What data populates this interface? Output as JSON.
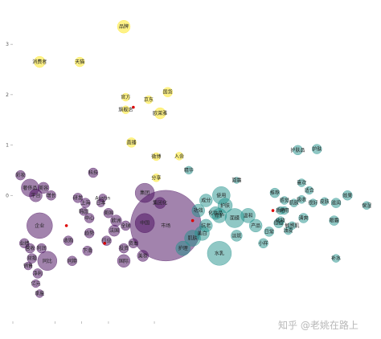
{
  "watermark": "知乎 @老姚在路上",
  "chart_data": {
    "type": "scatter",
    "title": "",
    "xlabel": "",
    "ylabel": "",
    "xlim": [
      -4,
      5.5
    ],
    "ylim": [
      -2.5,
      3.8
    ],
    "y_ticks": [
      3,
      2,
      1,
      0
    ],
    "y_tick_labels": [
      "3",
      "2",
      "1",
      "0"
    ],
    "x_ticks": [
      -4,
      -2.9,
      -2.2,
      -1.5,
      -0.3
    ],
    "x_tick_labels": [
      "",
      "",
      "",
      "",
      ""
    ],
    "grid": false,
    "colors": {
      "yellow": "#fde725",
      "purple": "#46085c",
      "teal": "#21918c",
      "red": "#dd0000"
    },
    "points": [
      {
        "label": "品牌",
        "x": -1.1,
        "y": 3.35,
        "size": 8,
        "color": "yellow"
      },
      {
        "label": "消费者",
        "x": -3.3,
        "y": 2.65,
        "size": 7,
        "color": "yellow"
      },
      {
        "label": "天猫",
        "x": -2.25,
        "y": 2.65,
        "size": 6,
        "color": "yellow"
      },
      {
        "label": "国货",
        "x": 0.05,
        "y": 2.05,
        "size": 6,
        "color": "yellow"
      },
      {
        "label": "官方",
        "x": -1.05,
        "y": 1.95,
        "size": 5,
        "color": "yellow"
      },
      {
        "label": "京东",
        "x": -0.45,
        "y": 1.9,
        "size": 5,
        "color": "yellow"
      },
      {
        "label": "旗舰店",
        "x": -1.05,
        "y": 1.7,
        "size": 5,
        "color": "yellow"
      },
      {
        "label": "欧莱雅",
        "x": -0.15,
        "y": 1.63,
        "size": 7,
        "color": "yellow"
      },
      {
        "label": "直播",
        "x": -0.9,
        "y": 1.05,
        "size": 6,
        "color": "yellow"
      },
      {
        "label": "微博",
        "x": -0.25,
        "y": 0.77,
        "size": 5,
        "color": "yellow"
      },
      {
        "label": "入会",
        "x": 0.35,
        "y": 0.78,
        "size": 5,
        "color": "yellow"
      },
      {
        "label": "分享",
        "x": -0.25,
        "y": 0.35,
        "size": 5,
        "color": "yellow"
      },
      {
        "label": "护肤品",
        "x": 3.45,
        "y": 0.9,
        "size": 6,
        "color": "teal"
      },
      {
        "label": "护肤",
        "x": 3.95,
        "y": 0.92,
        "size": 6,
        "color": "teal"
      },
      {
        "label": "精华",
        "x": 0.6,
        "y": 0.5,
        "size": 5,
        "color": "teal"
      },
      {
        "label": "面霜",
        "x": 1.85,
        "y": 0.3,
        "size": 4,
        "color": "teal"
      },
      {
        "label": "推荐",
        "x": 2.85,
        "y": 0.05,
        "size": 6,
        "color": "teal"
      },
      {
        "label": "喜欢",
        "x": 3.55,
        "y": 0.25,
        "size": 5,
        "color": "teal"
      },
      {
        "label": "适合",
        "x": 3.75,
        "y": 0.1,
        "size": 5,
        "color": "teal"
      },
      {
        "label": "效果",
        "x": 4.75,
        "y": -0.0,
        "size": 6,
        "color": "teal"
      },
      {
        "label": "肌肤",
        "x": 3.35,
        "y": -0.15,
        "size": 5,
        "color": "teal"
      },
      {
        "label": "吸收",
        "x": 3.55,
        "y": -0.08,
        "size": 5,
        "color": "teal"
      },
      {
        "label": "感觉",
        "x": 3.1,
        "y": -0.1,
        "size": 5,
        "color": "teal"
      },
      {
        "label": "很好",
        "x": 3.85,
        "y": -0.15,
        "size": 5,
        "color": "teal"
      },
      {
        "label": "皮肤",
        "x": 4.15,
        "y": -0.12,
        "size": 5,
        "color": "teal"
      },
      {
        "label": "滋润",
        "x": 4.45,
        "y": -0.15,
        "size": 6,
        "color": "teal"
      },
      {
        "label": "保湿",
        "x": 5.25,
        "y": -0.2,
        "size": 5,
        "color": "teal"
      },
      {
        "label": "质地",
        "x": 3.0,
        "y": -0.3,
        "size": 5,
        "color": "teal"
      },
      {
        "label": "好用",
        "x": 3.1,
        "y": -0.3,
        "size": 5,
        "color": "teal"
      },
      {
        "label": "清爽",
        "x": 3.6,
        "y": -0.45,
        "size": 6,
        "color": "teal"
      },
      {
        "label": "眼霜",
        "x": 4.4,
        "y": -0.5,
        "size": 6,
        "color": "teal"
      },
      {
        "label": "化妆",
        "x": 3.0,
        "y": -0.5,
        "size": 5,
        "color": "teal"
      },
      {
        "label": "痘痘",
        "x": 2.95,
        "y": -0.55,
        "size": 6,
        "color": "teal"
      },
      {
        "label": "油皮",
        "x": 3.2,
        "y": -0.7,
        "size": 5,
        "color": "teal"
      },
      {
        "label": "敏感肌",
        "x": 3.3,
        "y": -0.6,
        "size": 5,
        "color": "teal"
      },
      {
        "label": "使用",
        "x": 1.45,
        "y": 0.0,
        "size": 11,
        "color": "teal"
      },
      {
        "label": "成分",
        "x": 1.05,
        "y": -0.1,
        "size": 8,
        "color": "teal"
      },
      {
        "label": "功效",
        "x": 0.85,
        "y": -0.3,
        "size": 8,
        "color": "teal"
      },
      {
        "label": "面膜",
        "x": 1.8,
        "y": -0.45,
        "size": 12,
        "color": "teal"
      },
      {
        "label": "修护",
        "x": 1.4,
        "y": -0.4,
        "size": 9,
        "color": "teal"
      },
      {
        "label": "抗老",
        "x": 1.05,
        "y": -0.6,
        "size": 8,
        "color": "teal"
      },
      {
        "label": "美白",
        "x": 0.95,
        "y": -0.75,
        "size": 9,
        "color": "teal"
      },
      {
        "label": "淡斑",
        "x": 1.85,
        "y": -0.8,
        "size": 7,
        "color": "teal"
      },
      {
        "label": "肌肤",
        "x": 0.7,
        "y": -0.85,
        "size": 10,
        "color": "teal"
      },
      {
        "label": "护理",
        "x": 0.45,
        "y": -1.05,
        "size": 9,
        "color": "teal"
      },
      {
        "label": "水乳",
        "x": 1.4,
        "y": -1.15,
        "size": 15,
        "color": "teal"
      },
      {
        "label": "补水",
        "x": 4.45,
        "y": -1.25,
        "size": 5,
        "color": "teal"
      },
      {
        "label": "小样",
        "x": 2.55,
        "y": -0.95,
        "size": 6,
        "color": "teal"
      },
      {
        "label": "日常",
        "x": 2.7,
        "y": -0.72,
        "size": 6,
        "color": "teal"
      },
      {
        "label": "产品",
        "x": 2.35,
        "y": -0.6,
        "size": 8,
        "color": "teal"
      },
      {
        "label": "温和",
        "x": 2.15,
        "y": -0.4,
        "size": 9,
        "color": "teal"
      },
      {
        "label": "护肤",
        "x": 1.55,
        "y": -0.2,
        "size": 9,
        "color": "teal"
      },
      {
        "label": "化妆品",
        "x": 1.3,
        "y": -0.35,
        "size": 8,
        "color": "teal"
      },
      {
        "label": "彩妆",
        "x": -3.8,
        "y": 0.4,
        "size": 6,
        "color": "purple"
      },
      {
        "label": "奢侈品",
        "x": -3.55,
        "y": 0.15,
        "size": 11,
        "color": "purple"
      },
      {
        "label": "平台",
        "x": -3.4,
        "y": 0.0,
        "size": 8,
        "color": "purple"
      },
      {
        "label": "美容",
        "x": -3.2,
        "y": 0.15,
        "size": 7,
        "color": "purple"
      },
      {
        "label": "增长",
        "x": -3.0,
        "y": 0.0,
        "size": 6,
        "color": "purple"
      },
      {
        "label": "企业",
        "x": -3.3,
        "y": -0.6,
        "size": 16,
        "color": "purple"
      },
      {
        "label": "科技",
        "x": -1.9,
        "y": 0.45,
        "size": 6,
        "color": "purple"
      },
      {
        "label": "研发",
        "x": -2.3,
        "y": -0.05,
        "size": 6,
        "color": "purple"
      },
      {
        "label": "Austin",
        "x": -1.65,
        "y": -0.05,
        "size": 5,
        "color": "purple"
      },
      {
        "label": "日本",
        "x": -1.7,
        "y": -0.15,
        "size": 5,
        "color": "purple"
      },
      {
        "label": "上海",
        "x": -2.1,
        "y": -0.15,
        "size": 6,
        "color": "purple"
      },
      {
        "label": "韩国",
        "x": -2.15,
        "y": -0.32,
        "size": 5,
        "color": "purple"
      },
      {
        "label": "美国",
        "x": -1.5,
        "y": -0.35,
        "size": 6,
        "color": "purple"
      },
      {
        "label": "中心",
        "x": -2.0,
        "y": -0.45,
        "size": 6,
        "color": "purple"
      },
      {
        "label": "欧洲",
        "x": -1.3,
        "y": -0.5,
        "size": 7,
        "color": "purple"
      },
      {
        "label": "全球",
        "x": -1.05,
        "y": -0.6,
        "size": 6,
        "color": "purple"
      },
      {
        "label": "法国",
        "x": -1.35,
        "y": -0.7,
        "size": 7,
        "color": "purple"
      },
      {
        "label": "集团",
        "x": -0.55,
        "y": 0.05,
        "size": 12,
        "color": "purple"
      },
      {
        "label": "中国",
        "x": -0.55,
        "y": -0.55,
        "size": 12,
        "color": "purple"
      },
      {
        "label": "市场",
        "x": 0.0,
        "y": -0.6,
        "size": 44,
        "color": "purple"
      },
      {
        "label": "集团化",
        "x": -0.15,
        "y": -0.15,
        "size": 7,
        "color": "purple"
      },
      {
        "label": "趋势",
        "x": -2.0,
        "y": -0.75,
        "size": 6,
        "color": "purple"
      },
      {
        "label": "行业",
        "x": -1.55,
        "y": -0.9,
        "size": 6,
        "color": "purple"
      },
      {
        "label": "投资",
        "x": -1.1,
        "y": -1.05,
        "size": 6,
        "color": "purple"
      },
      {
        "label": "资本",
        "x": -0.85,
        "y": -0.95,
        "size": 6,
        "color": "purple"
      },
      {
        "label": "美妆",
        "x": -0.6,
        "y": -1.2,
        "size": 7,
        "color": "purple"
      },
      {
        "label": "国际",
        "x": -1.1,
        "y": -1.3,
        "size": 8,
        "color": "purple"
      },
      {
        "label": "收购",
        "x": -2.55,
        "y": -0.9,
        "size": 6,
        "color": "purple"
      },
      {
        "label": "下滑",
        "x": -2.05,
        "y": -1.1,
        "size": 6,
        "color": "purple"
      },
      {
        "label": "业绩",
        "x": -3.7,
        "y": -0.95,
        "size": 6,
        "color": "purple"
      },
      {
        "label": "营收",
        "x": -3.55,
        "y": -1.05,
        "size": 6,
        "color": "purple"
      },
      {
        "label": "利润",
        "x": -3.25,
        "y": -1.05,
        "size": 6,
        "color": "purple"
      },
      {
        "label": "财报",
        "x": -3.5,
        "y": -1.25,
        "size": 6,
        "color": "purple"
      },
      {
        "label": "销售",
        "x": -3.6,
        "y": -1.4,
        "size": 5,
        "color": "purple"
      },
      {
        "label": "净利",
        "x": -3.35,
        "y": -1.55,
        "size": 6,
        "color": "purple"
      },
      {
        "label": "同比",
        "x": -3.1,
        "y": -1.3,
        "size": 12,
        "color": "purple"
      },
      {
        "label": "亿元",
        "x": -3.4,
        "y": -1.75,
        "size": 5,
        "color": "purple"
      },
      {
        "label": "季度",
        "x": -3.3,
        "y": -1.95,
        "size": 5,
        "color": "purple"
      },
      {
        "label": "同期",
        "x": -2.45,
        "y": -1.3,
        "size": 6,
        "color": "purple"
      },
      {
        "label": "",
        "x": -2.6,
        "y": -0.6,
        "size": 1.8,
        "color": "red"
      },
      {
        "label": "",
        "x": -1.6,
        "y": -0.95,
        "size": 1.8,
        "color": "red"
      },
      {
        "label": "",
        "x": -0.85,
        "y": 1.75,
        "size": 1.8,
        "color": "red"
      },
      {
        "label": "",
        "x": 0.7,
        "y": -0.5,
        "size": 1.8,
        "color": "red"
      },
      {
        "label": "",
        "x": 2.8,
        "y": -0.3,
        "size": 1.8,
        "color": "red"
      }
    ]
  }
}
